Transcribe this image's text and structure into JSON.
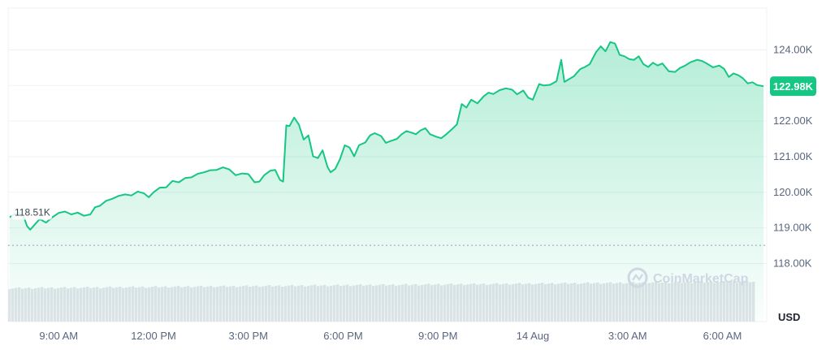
{
  "colors": {
    "line": "#16c784",
    "badge": "#16c784",
    "grid": "#eff2f5",
    "volume": "#e1e4ea",
    "text": "#58667e"
  },
  "watermark": "CoinMarketCap",
  "chart_data": {
    "type": "area",
    "unit_label": "USD",
    "ylim": [
      117600,
      124900
    ],
    "yticks": [
      {
        "value": 118000,
        "label": "118.00K"
      },
      {
        "value": 119000,
        "label": "119.00K"
      },
      {
        "value": 120000,
        "label": "120.00K"
      },
      {
        "value": 121000,
        "label": "121.00K"
      },
      {
        "value": 122000,
        "label": "122.00K"
      },
      {
        "value": 124000,
        "label": "124.00K"
      }
    ],
    "xticks": [
      {
        "hour": 9,
        "label": "9:00 AM"
      },
      {
        "hour": 12,
        "label": "12:00 PM"
      },
      {
        "hour": 15,
        "label": "3:00 PM"
      },
      {
        "hour": 18,
        "label": "6:00 PM"
      },
      {
        "hour": 21,
        "label": "9:00 PM"
      },
      {
        "hour": 24,
        "label": "14 Aug"
      },
      {
        "hour": 27,
        "label": "3:00 AM"
      },
      {
        "hour": 30,
        "label": "6:00 AM"
      }
    ],
    "xlim": [
      7.4,
      31.4
    ],
    "start_label": "118.51K",
    "start_value": 118510,
    "current_label": "122.98K",
    "current_value": 122980,
    "series": [
      {
        "points": [
          [
            7.45,
            119300
          ],
          [
            7.6,
            119380
          ],
          [
            7.75,
            119420
          ],
          [
            7.9,
            119300
          ],
          [
            8.0,
            119050
          ],
          [
            8.1,
            118950
          ],
          [
            8.2,
            119050
          ],
          [
            8.4,
            119250
          ],
          [
            8.6,
            119150
          ],
          [
            8.8,
            119300
          ],
          [
            9.0,
            119420
          ],
          [
            9.2,
            119460
          ],
          [
            9.4,
            119380
          ],
          [
            9.6,
            119430
          ],
          [
            9.8,
            119340
          ],
          [
            10.0,
            119380
          ],
          [
            10.15,
            119580
          ],
          [
            10.3,
            119620
          ],
          [
            10.5,
            119760
          ],
          [
            10.7,
            119820
          ],
          [
            10.9,
            119900
          ],
          [
            11.1,
            119940
          ],
          [
            11.3,
            119910
          ],
          [
            11.5,
            120020
          ],
          [
            11.7,
            119970
          ],
          [
            11.85,
            119860
          ],
          [
            12.0,
            120000
          ],
          [
            12.2,
            120130
          ],
          [
            12.4,
            120140
          ],
          [
            12.6,
            120320
          ],
          [
            12.8,
            120280
          ],
          [
            13.0,
            120400
          ],
          [
            13.2,
            120420
          ],
          [
            13.4,
            120520
          ],
          [
            13.6,
            120560
          ],
          [
            13.8,
            120620
          ],
          [
            14.0,
            120630
          ],
          [
            14.2,
            120700
          ],
          [
            14.4,
            120640
          ],
          [
            14.6,
            120480
          ],
          [
            14.8,
            120530
          ],
          [
            15.0,
            120510
          ],
          [
            15.2,
            120280
          ],
          [
            15.35,
            120300
          ],
          [
            15.5,
            120480
          ],
          [
            15.7,
            120610
          ],
          [
            15.85,
            120630
          ],
          [
            16.0,
            120350
          ],
          [
            16.1,
            120300
          ],
          [
            16.2,
            121880
          ],
          [
            16.3,
            121860
          ],
          [
            16.45,
            122100
          ],
          [
            16.6,
            121900
          ],
          [
            16.75,
            121480
          ],
          [
            16.9,
            121600
          ],
          [
            17.05,
            121010
          ],
          [
            17.2,
            120960
          ],
          [
            17.35,
            121180
          ],
          [
            17.5,
            120720
          ],
          [
            17.6,
            120560
          ],
          [
            17.75,
            120660
          ],
          [
            17.9,
            120930
          ],
          [
            18.05,
            121320
          ],
          [
            18.2,
            121260
          ],
          [
            18.35,
            121010
          ],
          [
            18.5,
            121320
          ],
          [
            18.7,
            121400
          ],
          [
            18.85,
            121600
          ],
          [
            19.0,
            121660
          ],
          [
            19.2,
            121580
          ],
          [
            19.35,
            121390
          ],
          [
            19.5,
            121440
          ],
          [
            19.7,
            121500
          ],
          [
            19.85,
            121630
          ],
          [
            20.0,
            121720
          ],
          [
            20.15,
            121680
          ],
          [
            20.3,
            121630
          ],
          [
            20.45,
            121740
          ],
          [
            20.6,
            121800
          ],
          [
            20.75,
            121630
          ],
          [
            20.95,
            121560
          ],
          [
            21.1,
            121520
          ],
          [
            21.25,
            121620
          ],
          [
            21.45,
            121780
          ],
          [
            21.6,
            121910
          ],
          [
            21.75,
            122480
          ],
          [
            21.9,
            122380
          ],
          [
            22.05,
            122600
          ],
          [
            22.25,
            122500
          ],
          [
            22.45,
            122700
          ],
          [
            22.6,
            122800
          ],
          [
            22.75,
            122760
          ],
          [
            22.95,
            122870
          ],
          [
            23.15,
            122920
          ],
          [
            23.35,
            122880
          ],
          [
            23.5,
            122750
          ],
          [
            23.7,
            122860
          ],
          [
            23.85,
            122660
          ],
          [
            24.0,
            122600
          ],
          [
            24.2,
            123040
          ],
          [
            24.35,
            123000
          ],
          [
            24.55,
            123020
          ],
          [
            24.75,
            123120
          ],
          [
            24.9,
            123720
          ],
          [
            25.0,
            123100
          ],
          [
            25.15,
            123180
          ],
          [
            25.3,
            123260
          ],
          [
            25.5,
            123460
          ],
          [
            25.65,
            123520
          ],
          [
            25.8,
            123600
          ],
          [
            26.0,
            123940
          ],
          [
            26.15,
            124100
          ],
          [
            26.3,
            123960
          ],
          [
            26.45,
            124220
          ],
          [
            26.6,
            124180
          ],
          [
            26.75,
            123860
          ],
          [
            26.9,
            123820
          ],
          [
            27.05,
            123740
          ],
          [
            27.2,
            123720
          ],
          [
            27.35,
            123820
          ],
          [
            27.5,
            123600
          ],
          [
            27.65,
            123520
          ],
          [
            27.8,
            123640
          ],
          [
            27.95,
            123560
          ],
          [
            28.1,
            123620
          ],
          [
            28.3,
            123400
          ],
          [
            28.5,
            123380
          ],
          [
            28.65,
            123490
          ],
          [
            28.8,
            123550
          ],
          [
            29.0,
            123660
          ],
          [
            29.2,
            123720
          ],
          [
            29.35,
            123690
          ],
          [
            29.5,
            123620
          ],
          [
            29.7,
            123510
          ],
          [
            29.9,
            123560
          ],
          [
            30.05,
            123470
          ],
          [
            30.2,
            123240
          ],
          [
            30.35,
            123340
          ],
          [
            30.5,
            123290
          ],
          [
            30.65,
            123200
          ],
          [
            30.8,
            123060
          ],
          [
            30.95,
            123090
          ],
          [
            31.1,
            123010
          ],
          [
            31.3,
            122980
          ]
        ]
      }
    ]
  }
}
